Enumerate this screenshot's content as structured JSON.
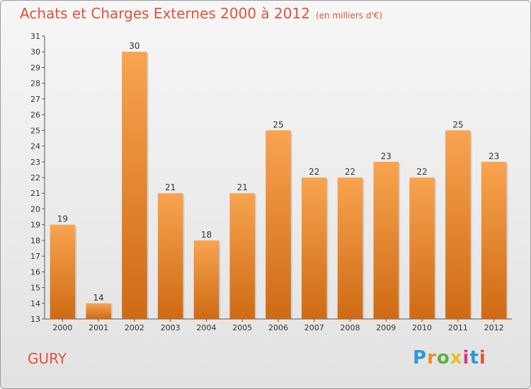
{
  "title": "Achats et Charges Externes 2000 à 2012",
  "subtitle": "(en milliers d'€)",
  "commune": "GURY",
  "logo": {
    "l1": "P",
    "l2": "r",
    "l3": "o",
    "l4": "x",
    "l5": "i",
    "l6": "t",
    "l7": "i"
  },
  "colors": {
    "bar_top": "#f8a450",
    "bar_bottom": "#cf6a14",
    "title": "#e2523a"
  },
  "chart_data": {
    "type": "bar",
    "categories": [
      "2000",
      "2001",
      "2002",
      "2003",
      "2004",
      "2005",
      "2006",
      "2007",
      "2008",
      "2009",
      "2010",
      "2011",
      "2012"
    ],
    "values": [
      19,
      14,
      30,
      21,
      18,
      21,
      25,
      22,
      22,
      23,
      22,
      25,
      23
    ],
    "ylim": [
      13,
      31
    ],
    "yticks": [
      13,
      14,
      15,
      16,
      17,
      18,
      19,
      20,
      21,
      22,
      23,
      24,
      25,
      26,
      27,
      28,
      29,
      30,
      31
    ],
    "grid": false,
    "legend": "none"
  }
}
